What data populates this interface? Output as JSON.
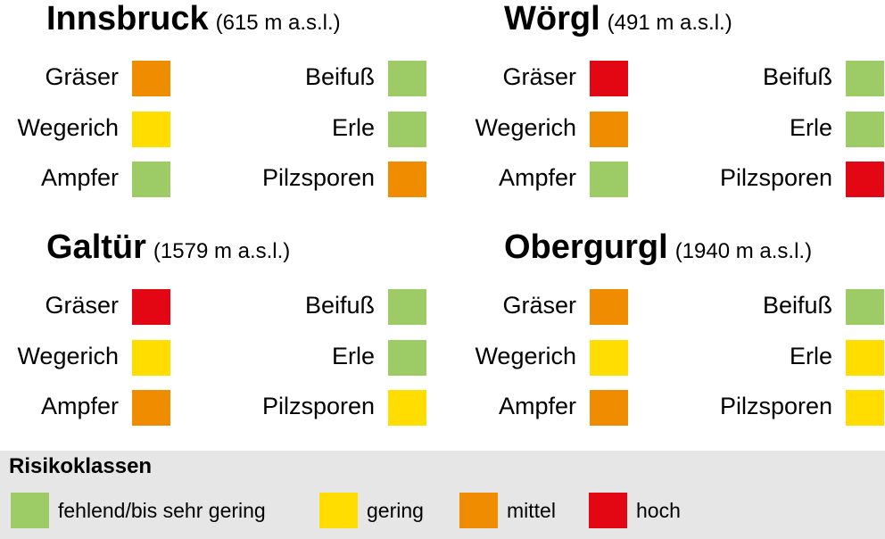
{
  "stations": [
    {
      "name": "Innsbruck",
      "elevation": "(615 m a.s.l.)",
      "items": [
        {
          "label": "Gräser",
          "risk": "mittel"
        },
        {
          "label": "Wegerich",
          "risk": "gering"
        },
        {
          "label": "Ampfer",
          "risk": "fehlend/bis sehr gering"
        },
        {
          "label": "Beifuß",
          "risk": "fehlend/bis sehr gering"
        },
        {
          "label": "Erle",
          "risk": "fehlend/bis sehr gering"
        },
        {
          "label": "Pilzsporen",
          "risk": "mittel"
        }
      ]
    },
    {
      "name": "Wörgl",
      "elevation": "(491 m a.s.l.)",
      "items": [
        {
          "label": "Gräser",
          "risk": "hoch"
        },
        {
          "label": "Wegerich",
          "risk": "mittel"
        },
        {
          "label": "Ampfer",
          "risk": "fehlend/bis sehr gering"
        },
        {
          "label": "Beifuß",
          "risk": "fehlend/bis sehr gering"
        },
        {
          "label": "Erle",
          "risk": "fehlend/bis sehr gering"
        },
        {
          "label": "Pilzsporen",
          "risk": "hoch"
        }
      ]
    },
    {
      "name": "Galtür",
      "elevation": "(1579 m a.s.l.)",
      "items": [
        {
          "label": "Gräser",
          "risk": "hoch"
        },
        {
          "label": "Wegerich",
          "risk": "gering"
        },
        {
          "label": "Ampfer",
          "risk": "mittel"
        },
        {
          "label": "Beifuß",
          "risk": "fehlend/bis sehr gering"
        },
        {
          "label": "Erle",
          "risk": "fehlend/bis sehr gering"
        },
        {
          "label": "Pilzsporen",
          "risk": "gering"
        }
      ]
    },
    {
      "name": "Obergurgl",
      "elevation": "(1940 m a.s.l.)",
      "items": [
        {
          "label": "Gräser",
          "risk": "mittel"
        },
        {
          "label": "Wegerich",
          "risk": "gering"
        },
        {
          "label": "Ampfer",
          "risk": "mittel"
        },
        {
          "label": "Beifuß",
          "risk": "fehlend/bis sehr gering"
        },
        {
          "label": "Erle",
          "risk": "gering"
        },
        {
          "label": "Pilzsporen",
          "risk": "gering"
        }
      ]
    }
  ],
  "legend": {
    "title": "Risikoklassen",
    "classes": [
      {
        "label": "fehlend/bis sehr gering",
        "color": "#9dcb66"
      },
      {
        "label": "gering",
        "color": "#ffdd00"
      },
      {
        "label": "mittel",
        "color": "#f08c00"
      },
      {
        "label": "hoch",
        "color": "#e30613"
      }
    ]
  }
}
